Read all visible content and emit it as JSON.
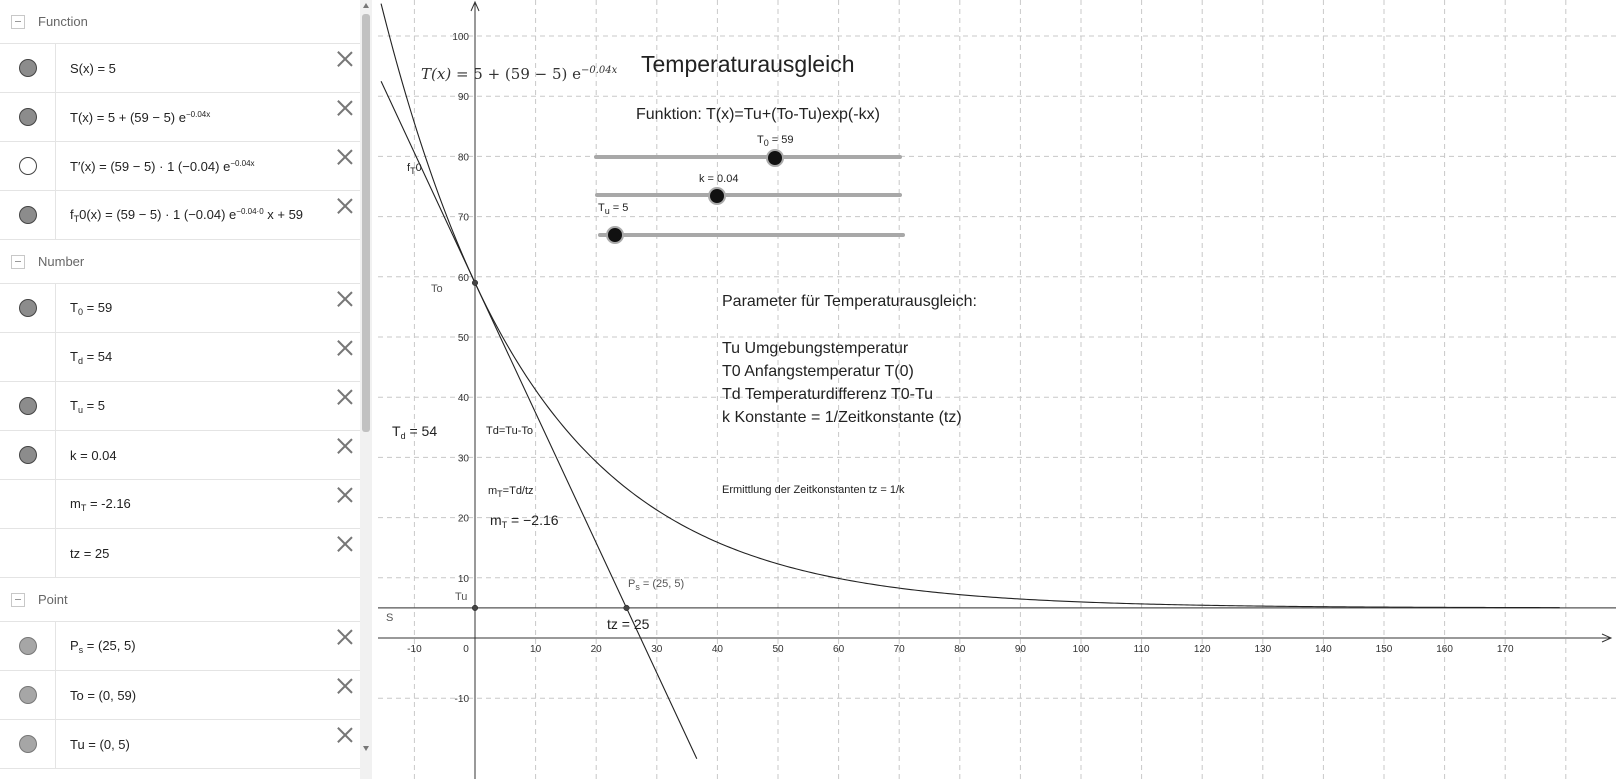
{
  "algebra": {
    "groups": [
      {
        "name": "Function",
        "items": [
          {
            "expr": "S(x) = 5"
          },
          {
            "expr": "T(x) = 5 + (59 − 5) e",
            "exp": "−0.04x"
          },
          {
            "expr": "T′(x) = (59 − 5) · 1 (−0.04) e",
            "exp": "−0.04x"
          },
          {
            "expr_pre": "f",
            "expr_sub": "T",
            "expr": "0(x) = (59 − 5) · 1 (−0.04) e",
            "exp": "−0.04·0",
            "expr_post": " x + 59"
          }
        ]
      },
      {
        "name": "Number",
        "items": [
          {
            "base": "T",
            "sub": "0",
            "rest": " = 59"
          },
          {
            "base": "T",
            "sub": "d",
            "rest": " = 54"
          },
          {
            "base": "T",
            "sub": "u",
            "rest": " = 5"
          },
          {
            "expr": "k = 0.04"
          },
          {
            "base": "m",
            "sub": "T",
            "rest": " = -2.16"
          },
          {
            "expr": "tz = 25"
          }
        ]
      },
      {
        "name": "Point",
        "items": [
          {
            "base": "P",
            "sub": "s",
            "rest": " = (25, 5)"
          },
          {
            "expr": "To = (0, 59)"
          },
          {
            "expr": "Tu = (0, 5)"
          }
        ]
      }
    ]
  },
  "graphics": {
    "title": "Temperaturausgleich",
    "function_label": "Funktion: T(x)=Tu+(To-Tu)exp(-kx)",
    "formula_label": {
      "lhs": "T(x)",
      "rhs": " = 5 + (59 − 5) e",
      "exp": "−0.04x"
    },
    "sliders": {
      "t0": {
        "name": "T",
        "sub": "0",
        "value": " = 59",
        "level": 59
      },
      "k": {
        "label": "k = 0.04",
        "level": 0.04
      },
      "tu": {
        "name": "T",
        "sub": "u",
        "value": " = 5",
        "level": 5
      }
    },
    "params": {
      "heading": "Parameter für Temperaturausgleich:",
      "lines": [
        "Tu Umgebungstemperatur",
        "T0 Anfangstemperatur  T(0)",
        "Td Temperaturdifferenz T0-Tu",
        "k  Konstante = 1/Zeitkonstante (tz)"
      ]
    },
    "ermittlung": "Ermittlung der Zeitkonstanten tz = 1/k",
    "td_label": {
      "base": "T",
      "sub": "d",
      "rest": " = 54"
    },
    "td_formula": "Td=Tu-To",
    "mt_formula": {
      "base": "m",
      "sub": "T",
      "rest": "=Td/tz"
    },
    "mt_label": {
      "base": "m",
      "sub": "T",
      "rest": " = −2.16"
    },
    "tz_label": "tz = 25",
    "ps_label": {
      "base": "P",
      "sub": "s",
      "rest": " = (25, 5)"
    },
    "to_label": "To",
    "tu_label": "Tu",
    "s_label": "S",
    "ft0_label": {
      "base": "f",
      "sub": "T",
      "rest": "0"
    },
    "x_ticks": [
      "-10",
      "0",
      "10",
      "20",
      "30",
      "40",
      "50",
      "60",
      "70",
      "80",
      "90",
      "100",
      "110",
      "120",
      "130",
      "140",
      "150",
      "160",
      "170"
    ],
    "y_ticks": [
      "100",
      "90",
      "80",
      "70",
      "60",
      "50",
      "40",
      "30",
      "20",
      "10",
      "-10"
    ]
  },
  "function_data": {
    "Tu": 5,
    "T0": 59,
    "k": 0.04,
    "tangent_slope": -2.16,
    "xlim": [
      -15.5,
      179
    ],
    "ylim": [
      -19,
      105
    ]
  }
}
